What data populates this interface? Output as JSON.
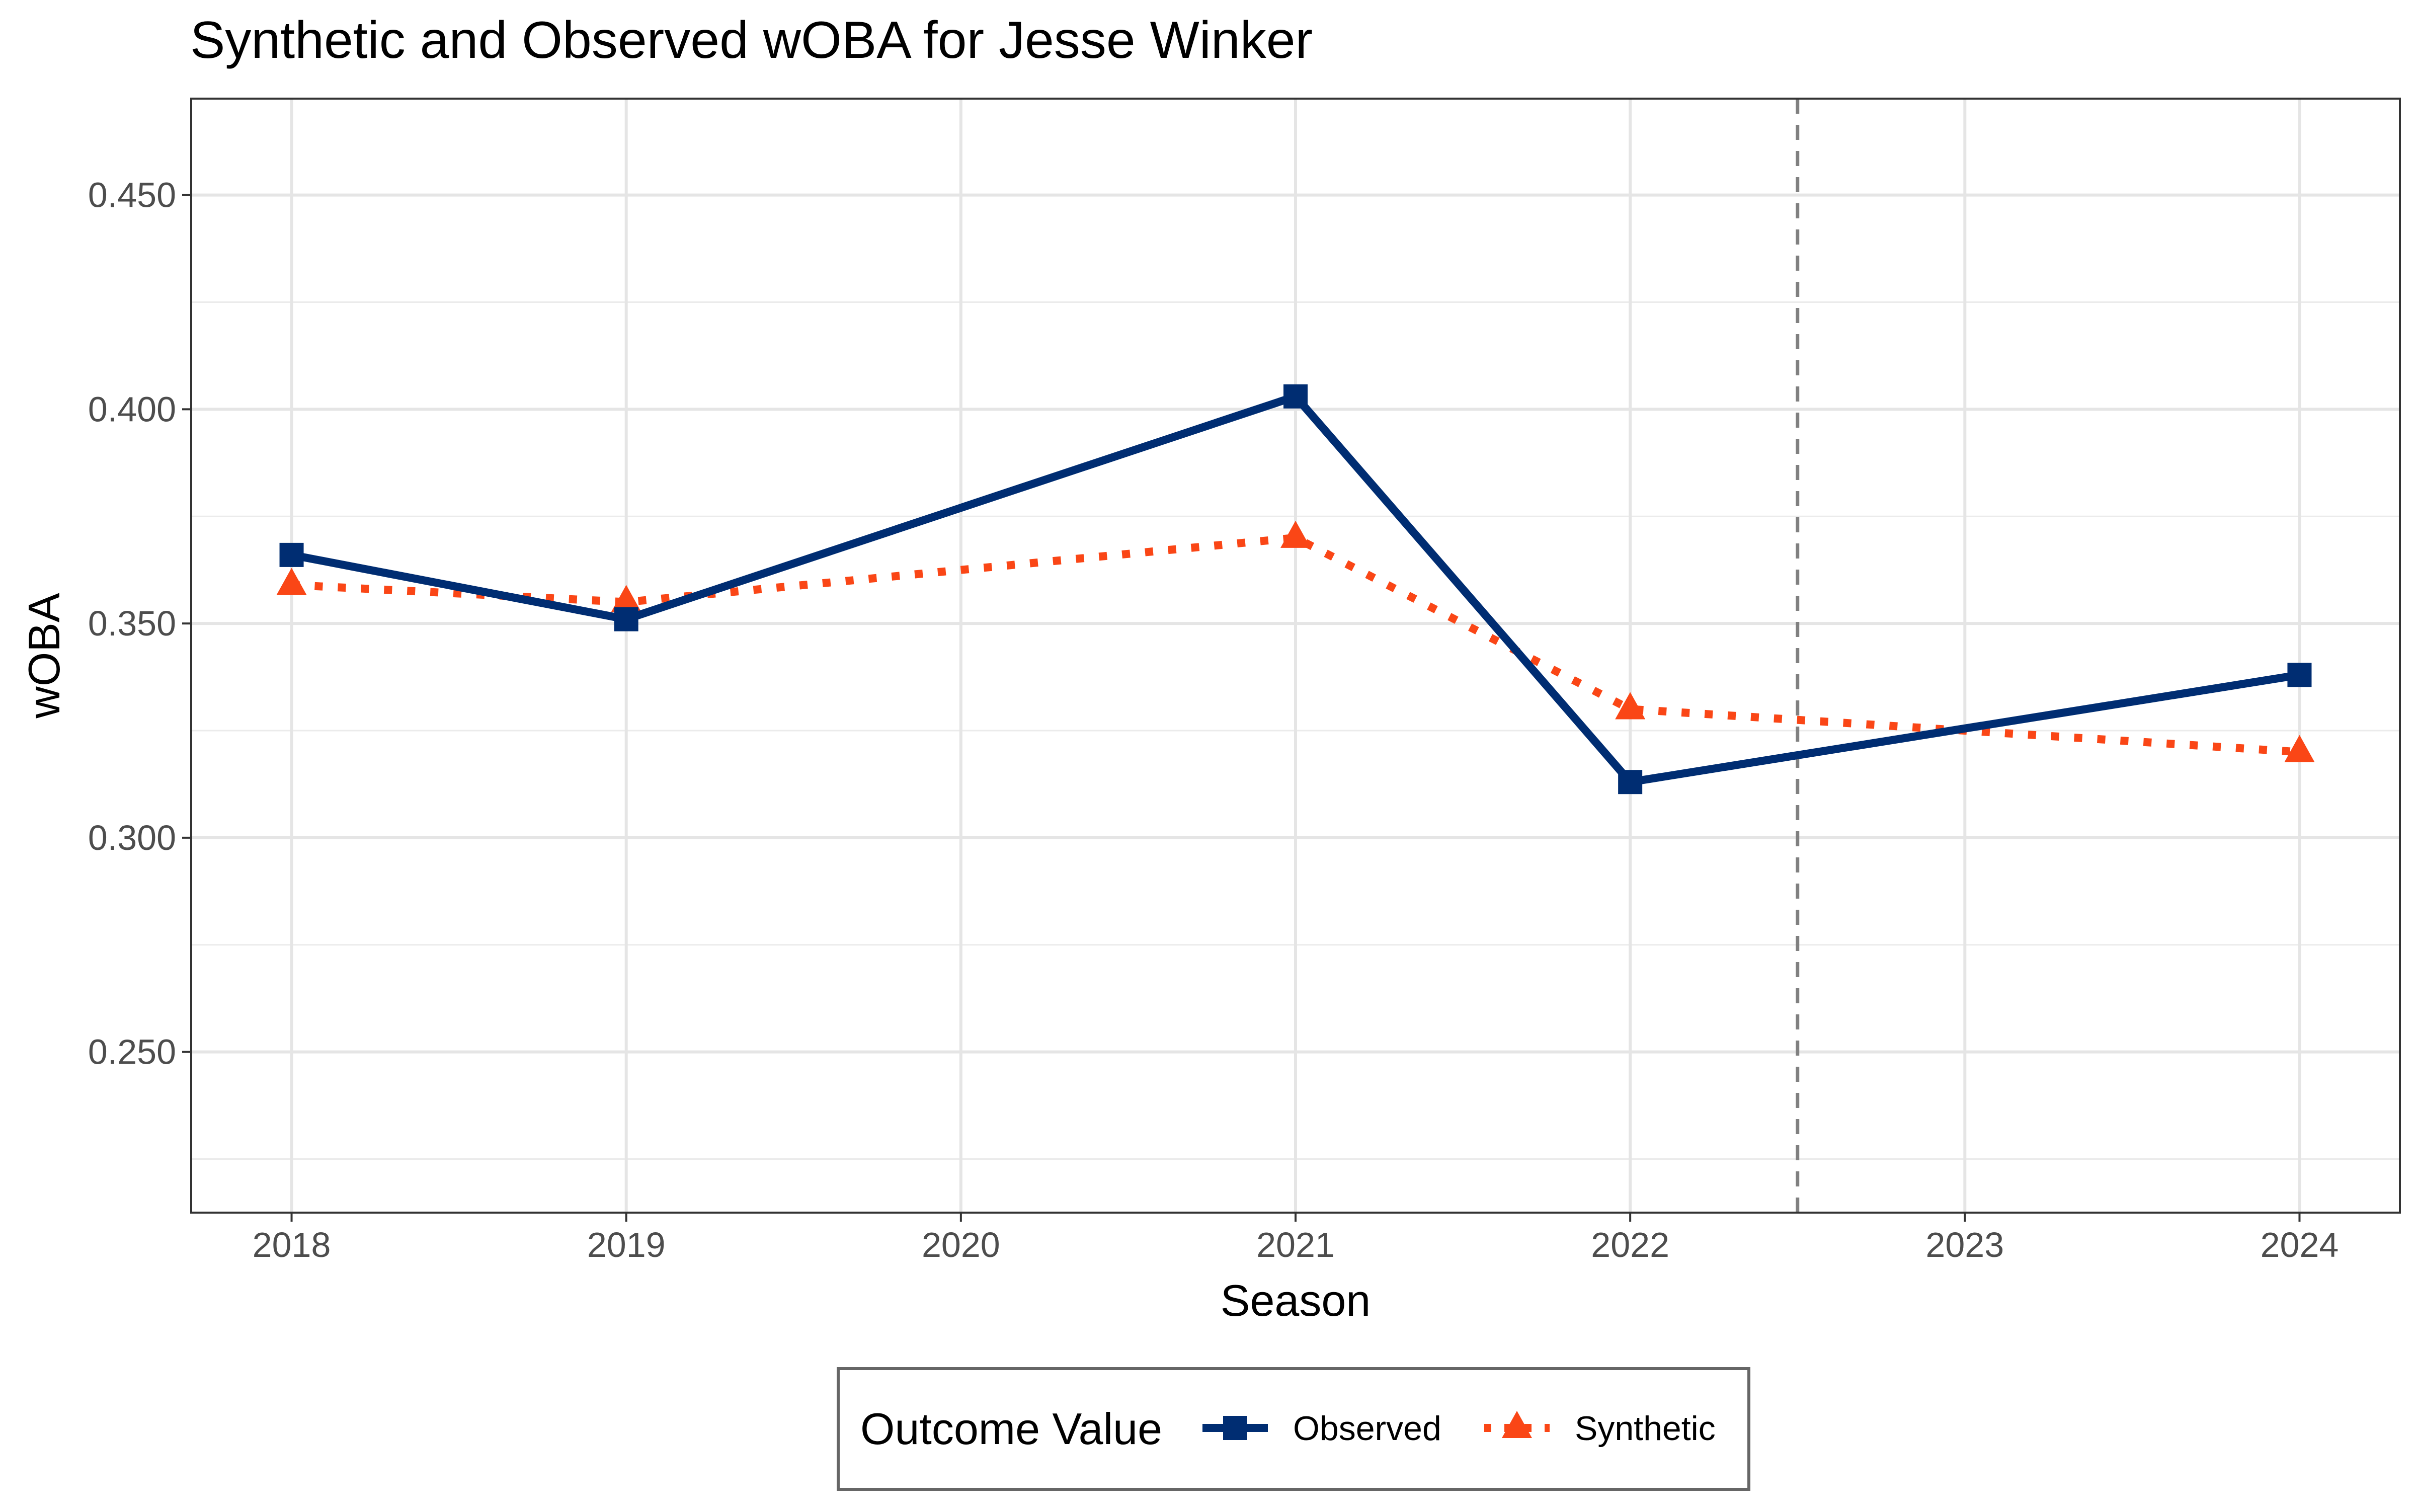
{
  "chart_data": {
    "type": "line",
    "title": "Synthetic and Observed wOBA for Jesse Winker",
    "xlabel": "Season",
    "ylabel": "wOBA",
    "x": [
      2018,
      2019,
      2020,
      2021,
      2022,
      2023,
      2024
    ],
    "x_ticks": [
      "2018",
      "2019",
      "2020",
      "2021",
      "2022",
      "2023",
      "2024"
    ],
    "y_ticks": [
      "0.250",
      "0.300",
      "0.350",
      "0.400",
      "0.450"
    ],
    "xlim": [
      2017.7,
      2024.3
    ],
    "ylim": [
      0.2125,
      0.4725
    ],
    "grid": true,
    "vertical_reference_line": {
      "x": 2022.5,
      "style": "dashed",
      "color": "#808080"
    },
    "legend": {
      "title": "Outcome Value",
      "position": "bottom",
      "entries": [
        "Observed",
        "Synthetic"
      ]
    },
    "series": [
      {
        "name": "Observed",
        "color": "#002d72",
        "line_style": "solid",
        "marker": "square",
        "points": [
          {
            "x": 2018,
            "y": 0.366
          },
          {
            "x": 2019,
            "y": 0.351
          },
          {
            "x": 2021,
            "y": 0.403
          },
          {
            "x": 2022,
            "y": 0.313
          },
          {
            "x": 2024,
            "y": 0.338
          }
        ]
      },
      {
        "name": "Synthetic",
        "color": "#fa4616",
        "line_style": "dotted",
        "marker": "triangle",
        "points": [
          {
            "x": 2018,
            "y": 0.359
          },
          {
            "x": 2019,
            "y": 0.355
          },
          {
            "x": 2021,
            "y": 0.37
          },
          {
            "x": 2022,
            "y": 0.33
          },
          {
            "x": 2024,
            "y": 0.32
          }
        ]
      }
    ]
  }
}
